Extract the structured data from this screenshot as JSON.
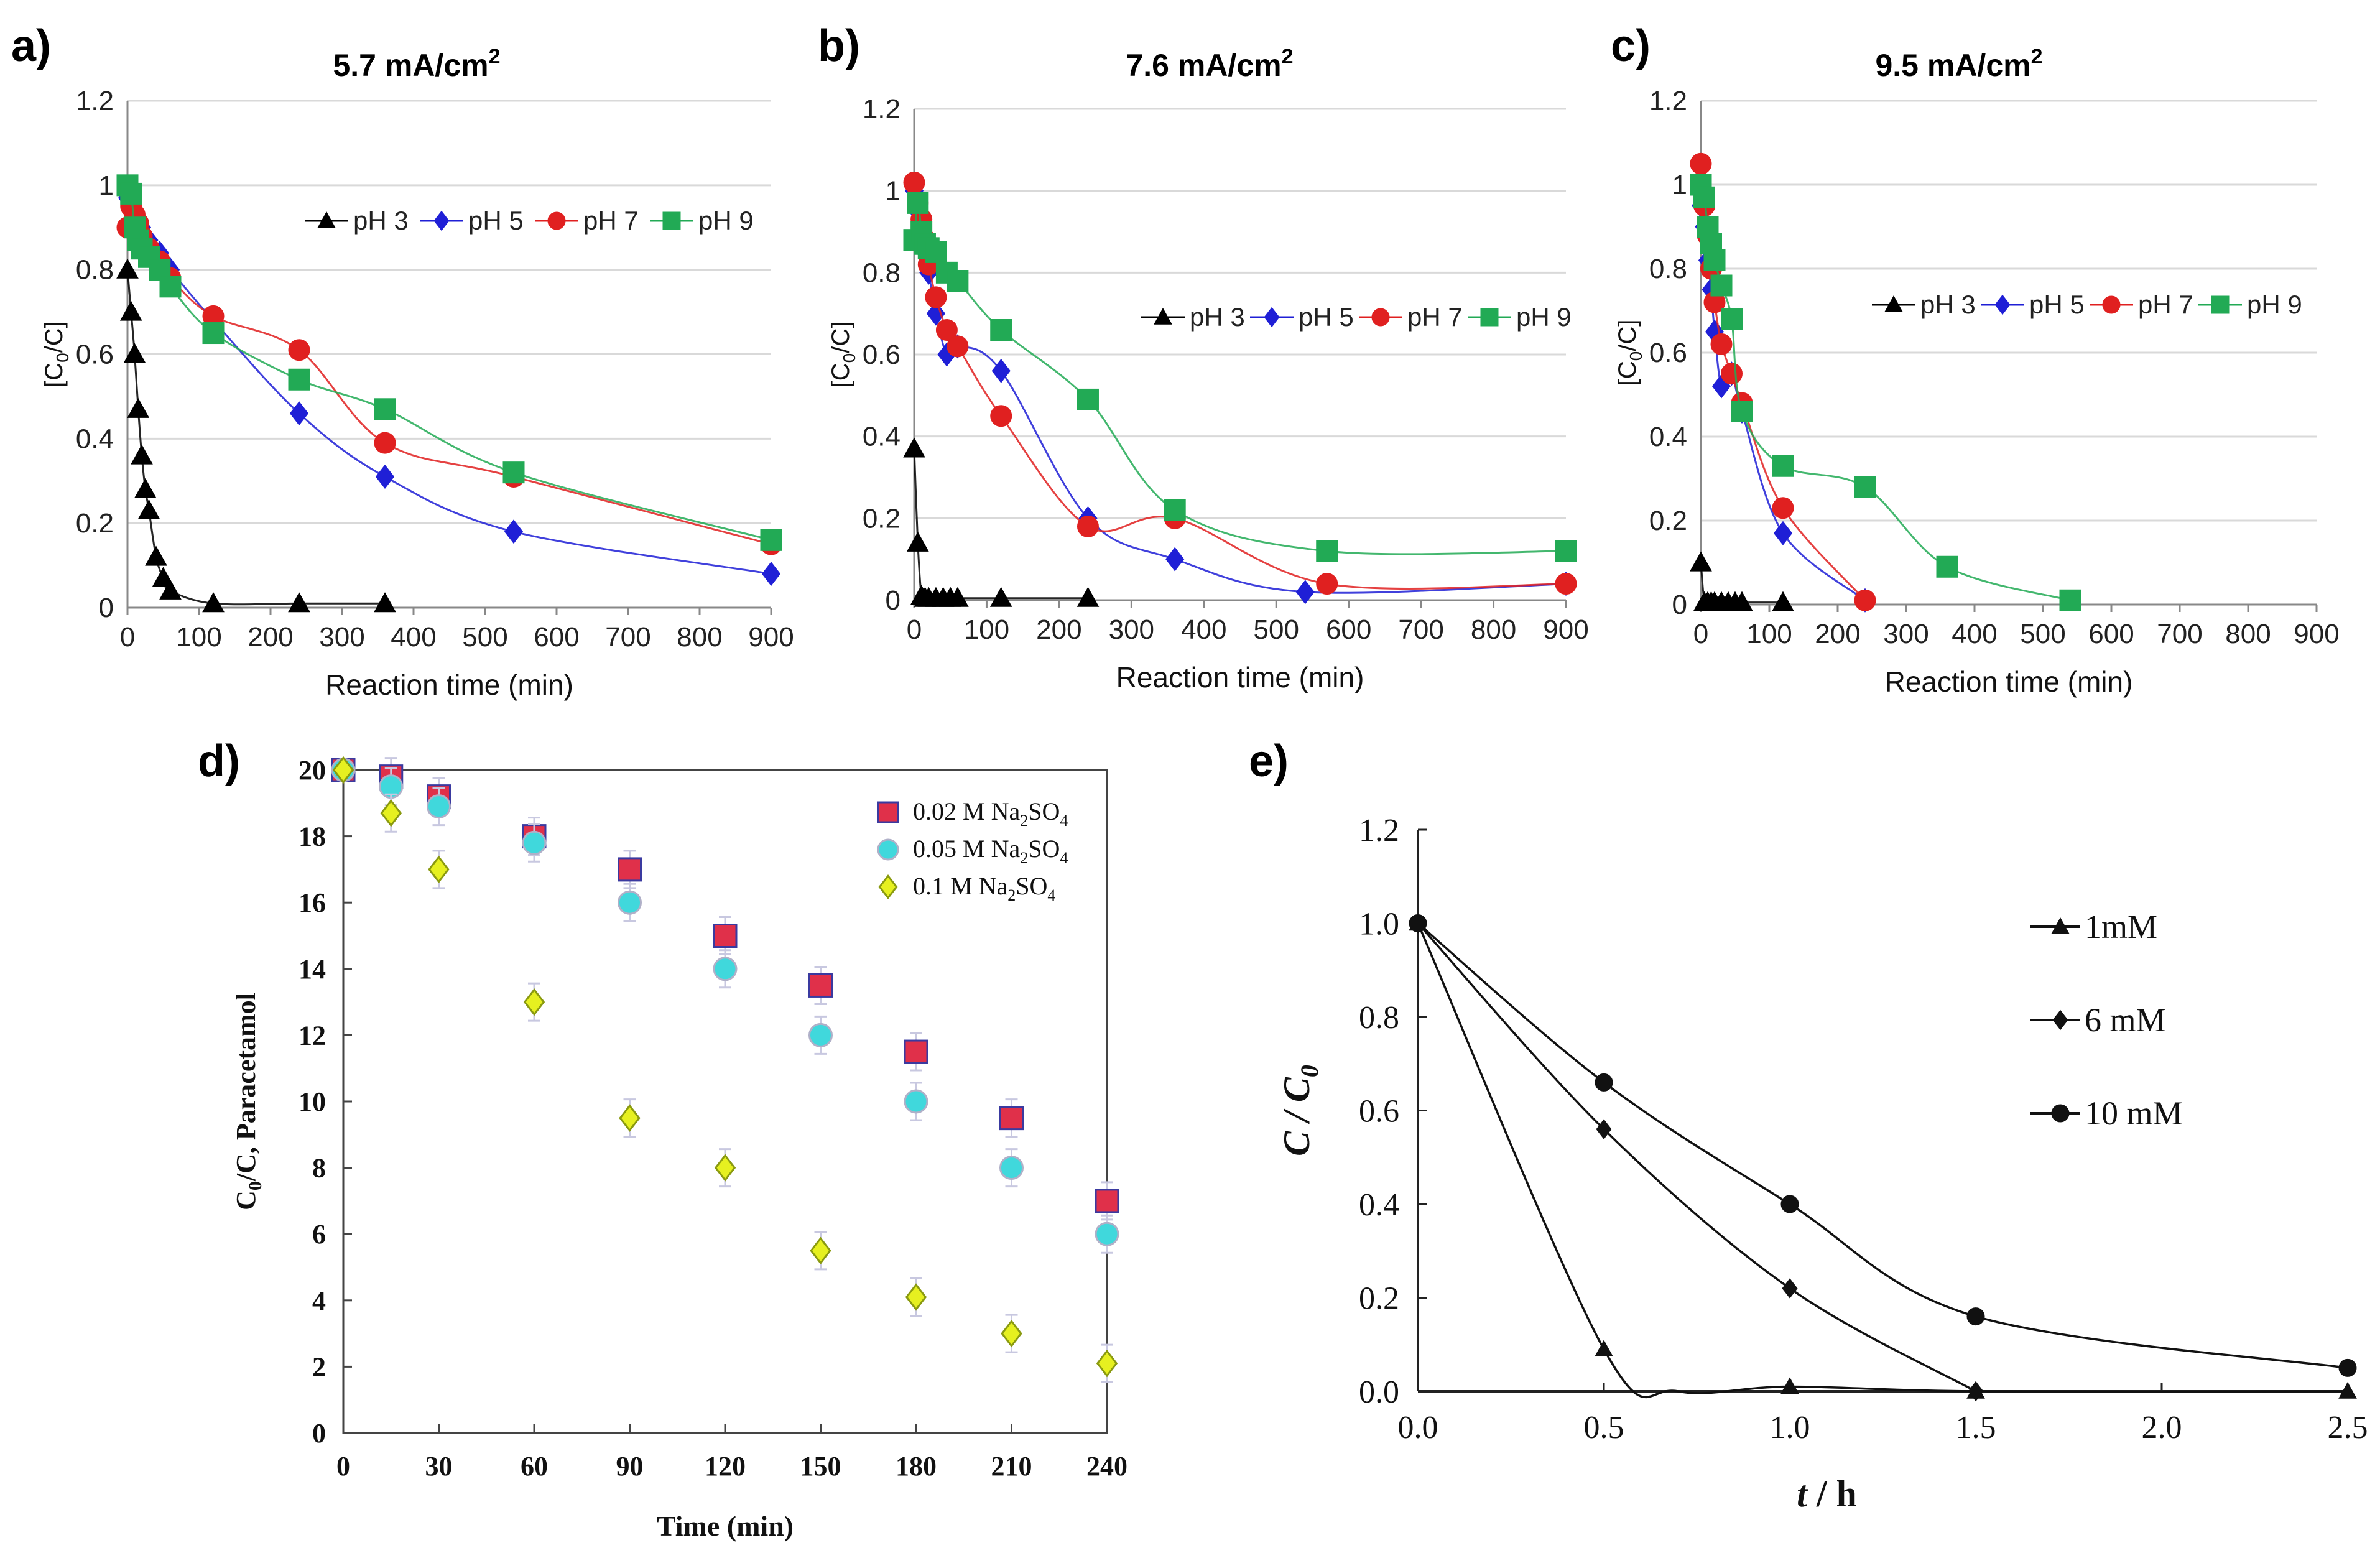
{
  "panel_labels": [
    "a)",
    "b)",
    "c)",
    "d)",
    "e)"
  ],
  "chart_data": [
    {
      "panel": "a)",
      "type": "line",
      "title_main": "5.7 mA/cm",
      "title_sup": "2",
      "xlabel": "Reaction time (min)",
      "ylabel": "[C",
      "ylabel_sub": "0",
      "ylabel_tail": "/C]",
      "xlim": [
        0,
        900
      ],
      "ylim": [
        0,
        1.2
      ],
      "xticks": [
        0,
        100,
        200,
        300,
        400,
        500,
        600,
        700,
        800,
        900
      ],
      "yticks": [
        0,
        0.2,
        0.4,
        0.6,
        0.8,
        1,
        1.2
      ],
      "grid": true,
      "legend_position": "top-right",
      "series": [
        {
          "name": "pH 3",
          "color": "#000000",
          "marker": "triangle",
          "x": [
            0,
            5,
            10,
            15,
            20,
            25,
            30,
            40,
            50,
            60,
            120,
            240,
            360
          ],
          "y": [
            0.8,
            0.7,
            0.6,
            0.47,
            0.36,
            0.28,
            0.23,
            0.12,
            0.07,
            0.04,
            0.01,
            0.01,
            0.01
          ]
        },
        {
          "name": "pH 5",
          "color": "#1f1fd6",
          "marker": "diamond",
          "x": [
            0,
            5,
            10,
            15,
            20,
            30,
            45,
            60,
            120,
            240,
            360,
            540,
            900
          ],
          "y": [
            0.97,
            0.96,
            0.94,
            0.92,
            0.9,
            0.87,
            0.84,
            0.8,
            0.68,
            0.46,
            0.31,
            0.18,
            0.08
          ]
        },
        {
          "name": "pH 7",
          "color": "#e02020",
          "marker": "circle",
          "x": [
            0,
            5,
            10,
            15,
            20,
            30,
            45,
            60,
            120,
            240,
            360,
            540,
            900
          ],
          "y": [
            0.9,
            0.95,
            0.93,
            0.91,
            0.88,
            0.85,
            0.82,
            0.78,
            0.69,
            0.61,
            0.39,
            0.31,
            0.15
          ]
        },
        {
          "name": "pH 9",
          "color": "#22aa55",
          "marker": "square",
          "x": [
            0,
            5,
            10,
            15,
            20,
            30,
            45,
            60,
            120,
            240,
            360,
            540,
            900
          ],
          "y": [
            1.0,
            0.98,
            0.9,
            0.87,
            0.85,
            0.83,
            0.8,
            0.76,
            0.65,
            0.54,
            0.47,
            0.32,
            0.16
          ]
        }
      ]
    },
    {
      "panel": "b)",
      "type": "line",
      "title_main": "7.6 mA/cm",
      "title_sup": "2",
      "xlabel": "Reaction time (min)",
      "ylabel": "[C",
      "ylabel_sub": "0",
      "ylabel_tail": "/C]",
      "xlim": [
        0,
        900
      ],
      "ylim": [
        0,
        1.2
      ],
      "xticks": [
        0,
        100,
        200,
        300,
        400,
        500,
        600,
        700,
        800,
        900
      ],
      "yticks": [
        0,
        0.2,
        0.4,
        0.6,
        0.8,
        1,
        1.2
      ],
      "grid": true,
      "legend_position": "right",
      "series": [
        {
          "name": "pH 3",
          "color": "#000000",
          "marker": "triangle",
          "x": [
            0,
            5,
            10,
            15,
            20,
            30,
            40,
            50,
            60,
            120,
            240
          ],
          "y": [
            0.37,
            0.14,
            0.01,
            0.005,
            0.005,
            0.005,
            0.005,
            0.005,
            0.005,
            0.005,
            0.005
          ]
        },
        {
          "name": "pH 5",
          "color": "#1f1fd6",
          "marker": "diamond",
          "x": [
            0,
            5,
            10,
            15,
            20,
            30,
            45,
            60,
            120,
            240,
            360,
            540,
            900
          ],
          "y": [
            1.0,
            0.95,
            0.9,
            0.85,
            0.8,
            0.7,
            0.6,
            0.62,
            0.56,
            0.2,
            0.1,
            0.02,
            0.04
          ]
        },
        {
          "name": "pH 7",
          "color": "#e02020",
          "marker": "circle",
          "x": [
            0,
            5,
            10,
            15,
            20,
            30,
            45,
            60,
            120,
            240,
            360,
            570,
            900
          ],
          "y": [
            1.02,
            0.97,
            0.93,
            0.88,
            0.82,
            0.74,
            0.66,
            0.62,
            0.45,
            0.18,
            0.2,
            0.04,
            0.04
          ]
        },
        {
          "name": "pH 9",
          "color": "#22aa55",
          "marker": "square",
          "x": [
            0,
            5,
            10,
            15,
            20,
            30,
            45,
            60,
            120,
            240,
            360,
            570,
            900
          ],
          "y": [
            0.88,
            0.97,
            0.9,
            0.87,
            0.86,
            0.85,
            0.8,
            0.78,
            0.66,
            0.49,
            0.22,
            0.12,
            0.12
          ]
        }
      ]
    },
    {
      "panel": "c)",
      "type": "line",
      "title_main": "9.5 mA/cm",
      "title_sup": "2",
      "xlabel": "Reaction time (min)",
      "ylabel": "[C",
      "ylabel_sub": "0",
      "ylabel_tail": "/C]",
      "xlim": [
        0,
        900
      ],
      "ylim": [
        0,
        1.2
      ],
      "xticks": [
        0,
        100,
        200,
        300,
        400,
        500,
        600,
        700,
        800,
        900
      ],
      "yticks": [
        0,
        0.2,
        0.4,
        0.6,
        0.8,
        1,
        1.2
      ],
      "grid": true,
      "legend_position": "right",
      "series": [
        {
          "name": "pH 3",
          "color": "#000000",
          "marker": "triangle",
          "x": [
            0,
            5,
            10,
            15,
            20,
            30,
            40,
            50,
            60,
            120
          ],
          "y": [
            0.1,
            0.005,
            0.005,
            0.005,
            0.005,
            0.005,
            0.005,
            0.005,
            0.005,
            0.005
          ]
        },
        {
          "name": "pH 5",
          "color": "#1f1fd6",
          "marker": "diamond",
          "x": [
            0,
            5,
            10,
            15,
            20,
            30,
            45,
            60,
            120,
            240
          ],
          "y": [
            0.95,
            0.9,
            0.82,
            0.75,
            0.65,
            0.52,
            0.55,
            0.46,
            0.17,
            0.01
          ]
        },
        {
          "name": "pH 7",
          "color": "#e02020",
          "marker": "circle",
          "x": [
            0,
            5,
            10,
            15,
            20,
            30,
            45,
            60,
            120,
            240
          ],
          "y": [
            1.05,
            0.95,
            0.88,
            0.8,
            0.72,
            0.62,
            0.55,
            0.48,
            0.23,
            0.01
          ]
        },
        {
          "name": "pH 9",
          "color": "#22aa55",
          "marker": "square",
          "x": [
            0,
            5,
            10,
            15,
            20,
            30,
            45,
            60,
            120,
            240,
            360,
            540
          ],
          "y": [
            1.0,
            0.97,
            0.9,
            0.86,
            0.82,
            0.76,
            0.68,
            0.46,
            0.33,
            0.28,
            0.09,
            0.01
          ]
        }
      ]
    },
    {
      "panel": "d)",
      "type": "scatter",
      "xlabel": "Time (min)",
      "ylabel": "C",
      "ylabel_sub": "0",
      "ylabel_tail": "/C, Paracetamol",
      "xlim": [
        0,
        240
      ],
      "ylim": [
        0,
        20
      ],
      "xticks": [
        0,
        30,
        60,
        90,
        120,
        150,
        180,
        210,
        240
      ],
      "yticks": [
        0,
        2,
        4,
        6,
        8,
        10,
        12,
        14,
        16,
        18,
        20
      ],
      "grid": false,
      "legend_position": "top-right",
      "series": [
        {
          "name": "0.02 M Na",
          "name_sub1": "2",
          "name_mid": "SO",
          "name_sub2": "4",
          "color": "#e0304a",
          "stroke": "#3a3aa0",
          "marker": "square",
          "x": [
            0,
            15,
            30,
            60,
            90,
            120,
            150,
            180,
            210,
            240
          ],
          "y": [
            20,
            19.8,
            19.2,
            18,
            17,
            15,
            13.5,
            11.5,
            9.5,
            7
          ]
        },
        {
          "name": "0.05 M Na",
          "name_sub1": "2",
          "name_mid": "SO",
          "name_sub2": "4",
          "color": "#40d8dc",
          "stroke": "#b0b0c8",
          "marker": "circle",
          "x": [
            0,
            15,
            30,
            60,
            90,
            120,
            150,
            180,
            210,
            240
          ],
          "y": [
            20,
            19.5,
            18.9,
            17.8,
            16,
            14,
            12,
            10,
            8,
            6
          ]
        },
        {
          "name": "0.1  M Na",
          "name_sub1": "2",
          "name_mid": "SO",
          "name_sub2": "4",
          "color": "#e6f020",
          "stroke": "#8a9a10",
          "marker": "diamond",
          "x": [
            0,
            15,
            30,
            60,
            90,
            120,
            150,
            180,
            210,
            240
          ],
          "y": [
            20,
            18.7,
            17,
            13,
            9.5,
            8,
            5.5,
            4.1,
            3,
            2.1
          ]
        }
      ]
    },
    {
      "panel": "e)",
      "type": "line",
      "xlabel_var": "t",
      "xlabel_unit": " / h",
      "ylabel_var": "C / C",
      "ylabel_sub": "0",
      "xlim": [
        0,
        2.5
      ],
      "ylim": [
        0,
        1.2
      ],
      "xticks": [
        "0.0",
        "0.5",
        "1.0",
        "1.5",
        "2.0",
        "2.5"
      ],
      "yticks": [
        "0.0",
        "0.2",
        "0.4",
        "0.6",
        "0.8",
        "1.0",
        "1.2"
      ],
      "grid": false,
      "legend_position": "right",
      "series": [
        {
          "name": "1mM",
          "color": "#111111",
          "marker": "triangle",
          "x": [
            0,
            0.5,
            0.7,
            1.0,
            1.5,
            2.5
          ],
          "y": [
            1.0,
            0.09,
            0.0,
            0.01,
            0.0,
            0.0
          ]
        },
        {
          "name": "6 mM",
          "color": "#111111",
          "marker": "diamond",
          "x": [
            0,
            0.5,
            1.0,
            1.5
          ],
          "y": [
            1.0,
            0.56,
            0.22,
            0.0
          ]
        },
        {
          "name": "10 mM",
          "color": "#111111",
          "marker": "circle",
          "x": [
            0,
            0.5,
            1.0,
            1.5,
            2.5
          ],
          "y": [
            1.0,
            0.66,
            0.4,
            0.16,
            0.05
          ]
        }
      ]
    }
  ]
}
